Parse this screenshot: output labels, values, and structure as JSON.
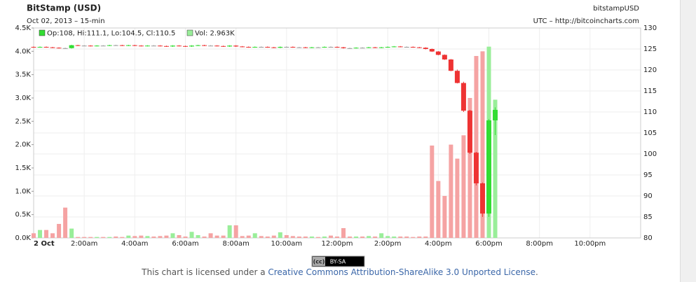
{
  "chart_data": {
    "type": "candlestick",
    "title": "BitStamp (USD)",
    "subtitle": "Oct 02, 2013 – 15-min",
    "symbol": "bitstampUSD",
    "source": "UTC – http://bitcoincharts.com",
    "legend_ohlc": "Op:108, Hi:111.1, Lo:104.5, Cl:110.5",
    "legend_volume": "Vol: 2.963K",
    "badge_cc": "(cc)",
    "badge_text": "BY-SA",
    "license_prefix": "This chart is licensed under a ",
    "license_link": "Creative Commons Attribution-ShareAlike 3.0 Unported License",
    "license_suffix": ".",
    "up_color": "#33dd33",
    "down_color": "#ee3333",
    "flat_color": "#999999",
    "volume_up_color": "#99ee99",
    "volume_down_color": "#f5a3a3",
    "xlim": [
      0,
      24
    ],
    "xticks": [
      {
        "value": 0,
        "label": "2 Oct"
      },
      {
        "value": 2,
        "label": "2:00am"
      },
      {
        "value": 4,
        "label": "4:00am"
      },
      {
        "value": 6,
        "label": "6:00am"
      },
      {
        "value": 8,
        "label": "8:00am"
      },
      {
        "value": 10,
        "label": "10:00am"
      },
      {
        "value": 12,
        "label": "12:00pm"
      },
      {
        "value": 14,
        "label": "2:00pm"
      },
      {
        "value": 16,
        "label": "4:00pm"
      },
      {
        "value": 18,
        "label": "6:00pm"
      },
      {
        "value": 20,
        "label": "8:00pm"
      },
      {
        "value": 22,
        "label": "10:00pm"
      }
    ],
    "ylim": [
      0,
      4.5
    ],
    "yticks": [
      {
        "value": 0,
        "label": "0.0K"
      },
      {
        "value": 0.5,
        "label": "0.5K"
      },
      {
        "value": 1,
        "label": "1.0K"
      },
      {
        "value": 1.5,
        "label": "1.5K"
      },
      {
        "value": 2,
        "label": "2.0K"
      },
      {
        "value": 2.5,
        "label": "2.5K"
      },
      {
        "value": 3,
        "label": "3.0K"
      },
      {
        "value": 3.5,
        "label": "3.5K"
      },
      {
        "value": 4,
        "label": "4.0K"
      },
      {
        "value": 4.5,
        "label": "4.5K"
      }
    ],
    "y2lim": [
      80,
      130
    ],
    "y2ticks": [
      80,
      85,
      90,
      95,
      100,
      105,
      110,
      115,
      120,
      125,
      130
    ],
    "grid": true,
    "x": [
      0,
      0.25,
      0.5,
      0.75,
      1,
      1.25,
      1.5,
      1.75,
      2,
      2.25,
      2.5,
      2.75,
      3,
      3.25,
      3.5,
      3.75,
      4,
      4.25,
      4.5,
      4.75,
      5,
      5.25,
      5.5,
      5.75,
      6,
      6.25,
      6.5,
      6.75,
      7,
      7.25,
      7.5,
      7.75,
      8,
      8.25,
      8.5,
      8.75,
      9,
      9.25,
      9.5,
      9.75,
      10,
      10.25,
      10.5,
      10.75,
      11,
      11.25,
      11.5,
      11.75,
      12,
      12.25,
      12.5,
      12.75,
      13,
      13.25,
      13.5,
      13.75,
      14,
      14.25,
      14.5,
      14.75,
      15,
      15.25,
      15.5,
      15.75,
      16,
      16.25,
      16.5,
      16.75,
      17,
      17.25,
      17.5,
      17.75,
      18,
      18.25
    ],
    "open": [
      125.5,
      125.4,
      125.5,
      125.4,
      125.3,
      125.2,
      125.2,
      125.9,
      125.8,
      125.8,
      125.7,
      125.8,
      125.8,
      125.9,
      125.9,
      125.8,
      125.9,
      125.8,
      125.7,
      125.8,
      125.8,
      125.7,
      125.6,
      125.8,
      125.7,
      125.6,
      125.8,
      125.9,
      125.8,
      125.8,
      125.7,
      125.6,
      125.8,
      125.6,
      125.5,
      125.4,
      125.5,
      125.5,
      125.4,
      125.3,
      125.5,
      125.5,
      125.4,
      125.4,
      125.3,
      125.4,
      125.4,
      125.5,
      125.5,
      125.4,
      125.2,
      125.2,
      125.3,
      125.3,
      125.4,
      125.3,
      125.4,
      125.5,
      125.6,
      125.5,
      125.5,
      125.4,
      125.3,
      125.0,
      124.4,
      123.6,
      122.5,
      119.8,
      116.9,
      110.3,
      100.3,
      93,
      85.8,
      108
    ],
    "high": [
      125.6,
      125.6,
      125.6,
      125.5,
      125.4,
      125.3,
      126,
      126,
      125.9,
      125.9,
      125.9,
      125.9,
      126,
      126,
      126,
      126,
      126,
      125.9,
      125.9,
      125.9,
      125.9,
      125.8,
      125.9,
      125.9,
      125.8,
      125.9,
      126,
      126,
      125.9,
      125.9,
      125.8,
      125.9,
      125.9,
      125.7,
      125.6,
      125.6,
      125.6,
      125.6,
      125.5,
      125.6,
      125.6,
      125.6,
      125.5,
      125.5,
      125.5,
      125.5,
      125.6,
      125.6,
      125.6,
      125.5,
      125.3,
      125.4,
      125.4,
      125.5,
      125.5,
      125.5,
      125.6,
      125.7,
      125.7,
      125.6,
      125.6,
      125.5,
      125.4,
      125.1,
      124.5,
      123.7,
      122.6,
      120.1,
      117.2,
      110.5,
      100.5,
      93.2,
      108.3,
      111.1
    ],
    "low": [
      125.3,
      125.3,
      125.3,
      125.2,
      125.1,
      125.1,
      125.1,
      125.7,
      125.7,
      125.6,
      125.6,
      125.7,
      125.7,
      125.8,
      125.7,
      125.7,
      125.7,
      125.6,
      125.6,
      125.7,
      125.6,
      125.5,
      125.5,
      125.6,
      125.5,
      125.5,
      125.7,
      125.7,
      125.7,
      125.6,
      125.5,
      125.5,
      125.5,
      125.4,
      125.3,
      125.3,
      125.4,
      125.3,
      125.2,
      125.2,
      125.4,
      125.3,
      125.3,
      125.2,
      125.2,
      125.3,
      125.3,
      125.4,
      125.3,
      125.1,
      125.1,
      125.1,
      125.2,
      125.2,
      125.2,
      125.2,
      125.3,
      125.4,
      125.4,
      125.4,
      125.3,
      125.2,
      124.9,
      124.3,
      123.5,
      122.4,
      119.7,
      116.8,
      110,
      100,
      92.5,
      85,
      85,
      104.5
    ],
    "close": [
      125.4,
      125.5,
      125.4,
      125.3,
      125.2,
      125.2,
      125.9,
      125.8,
      125.8,
      125.7,
      125.8,
      125.8,
      125.9,
      125.9,
      125.8,
      125.9,
      125.8,
      125.7,
      125.8,
      125.8,
      125.7,
      125.6,
      125.8,
      125.7,
      125.6,
      125.8,
      125.9,
      125.8,
      125.8,
      125.7,
      125.6,
      125.8,
      125.6,
      125.5,
      125.4,
      125.5,
      125.5,
      125.4,
      125.3,
      125.5,
      125.5,
      125.4,
      125.4,
      125.3,
      125.4,
      125.4,
      125.5,
      125.5,
      125.4,
      125.2,
      125.2,
      125.3,
      125.3,
      125.4,
      125.3,
      125.4,
      125.5,
      125.6,
      125.5,
      125.5,
      125.4,
      125.3,
      125.0,
      124.4,
      123.6,
      122.5,
      119.8,
      116.9,
      110.3,
      100.3,
      93,
      85.8,
      108,
      110.5
    ],
    "volume": [
      0.1,
      0.17,
      0.17,
      0.1,
      0.3,
      0.65,
      0.2,
      0.02,
      0.02,
      0.02,
      0.02,
      0.02,
      0.02,
      0.03,
      0.02,
      0.05,
      0.04,
      0.05,
      0.04,
      0.03,
      0.04,
      0.05,
      0.1,
      0.06,
      0.03,
      0.13,
      0.06,
      0.03,
      0.1,
      0.05,
      0.05,
      0.27,
      0.27,
      0.04,
      0.05,
      0.1,
      0.04,
      0.03,
      0.05,
      0.12,
      0.06,
      0.04,
      0.03,
      0.03,
      0.03,
      0.02,
      0.03,
      0.05,
      0.03,
      0.21,
      0.03,
      0.03,
      0.03,
      0.04,
      0.03,
      0.1,
      0.04,
      0.03,
      0.03,
      0.03,
      0.02,
      0.03,
      0.03,
      1.98,
      1.22,
      0.9,
      2.0,
      1.7,
      2.2,
      3.0,
      3.9,
      4.0,
      4.1,
      2.963
    ]
  }
}
